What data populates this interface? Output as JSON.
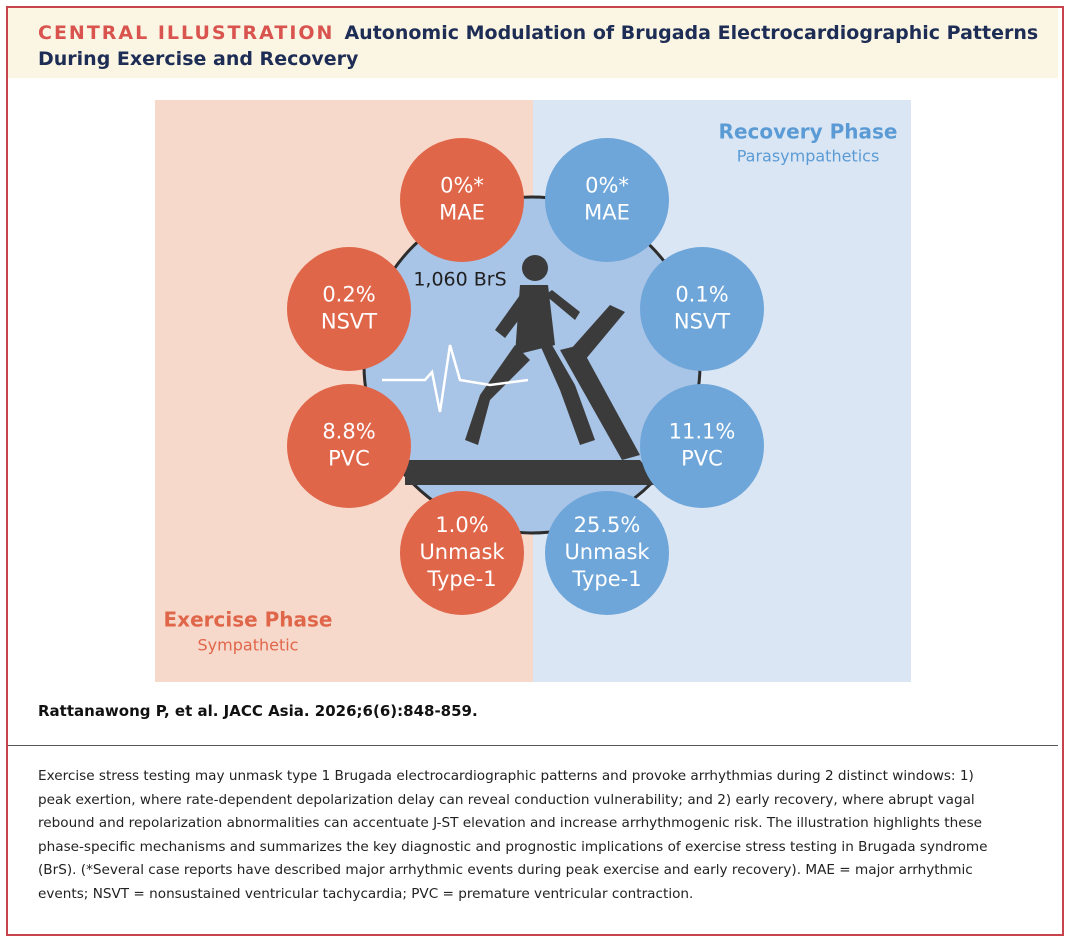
{
  "header": {
    "label": "CENTRAL ILLUSTRATION",
    "title": "Autonomic Modulation of Brugada Electrocardiographic Patterns During Exercise and Recovery"
  },
  "illustration": {
    "center_label": "1,060 BrS",
    "exercise": {
      "title": "Exercise Phase",
      "subtitle": "Sympathetic",
      "circles": [
        [
          "0%*",
          "MAE"
        ],
        [
          "0.2%",
          "NSVT"
        ],
        [
          "8.8%",
          "PVC"
        ],
        [
          "1.0%",
          "Unmask",
          "Type-1"
        ]
      ]
    },
    "recovery": {
      "title": "Recovery Phase",
      "subtitle": "Parasympathetics",
      "circles": [
        [
          "0%*",
          "MAE"
        ],
        [
          "0.1%",
          "NSVT"
        ],
        [
          "11.1%",
          "PVC"
        ],
        [
          "25.5%",
          "Unmask",
          "Type-1"
        ]
      ]
    }
  },
  "citation": "Rattanawong P, et al. JACC Asia. 2026;6(6):848-859.",
  "caption": [
    "Exercise stress testing may unmask type 1 Brugada electrocardiographic patterns and provoke arrhythmias during 2 distinct windows: 1)",
    "peak exertion, where rate-dependent depolarization delay can reveal conduction vulnerability; and 2) early recovery, where abrupt vagal",
    "rebound and repolarization abnormalities can accentuate J-ST elevation and increase arrhythmogenic risk. The illustration highlights these",
    "phase-specific mechanisms and summarizes the key diagnostic and prognostic implications of exercise stress testing in Brugada syndrome",
    "(BrS). (*Several case reports have described major arrhythmic events during peak exercise and early recovery). MAE = major arrhythmic",
    "events; NSVT = nonsustained ventricular tachycardia; PVC = premature ventricular contraction."
  ]
}
